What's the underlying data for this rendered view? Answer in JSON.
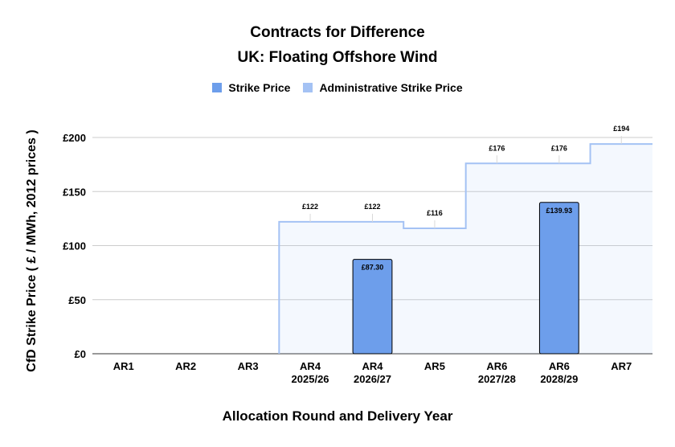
{
  "chart_data": {
    "type": "bar",
    "title": "Contracts for Difference",
    "subtitle": "UK: Floating Offshore Wind",
    "xlabel": "Allocation Round and Delivery Year",
    "ylabel": "CfD Strike Price ( £ / MWh, 2012 prices )",
    "ylim": [
      0,
      200
    ],
    "yticks": [
      0,
      50,
      100,
      150,
      200
    ],
    "ytick_labels": [
      "£0",
      "£50",
      "£100",
      "£150",
      "£200"
    ],
    "grid": true,
    "legend_position": "top",
    "categories": [
      [
        "AR1",
        ""
      ],
      [
        "AR2",
        ""
      ],
      [
        "AR3",
        ""
      ],
      [
        "AR4",
        "2025/26"
      ],
      [
        "AR4",
        "2026/27"
      ],
      [
        "AR5",
        ""
      ],
      [
        "AR6",
        "2027/28"
      ],
      [
        "AR6",
        "2028/29"
      ],
      [
        "AR7",
        ""
      ]
    ],
    "series": [
      {
        "name": "Strike Price",
        "kind": "bar",
        "color": "#6d9eeb",
        "values": [
          null,
          null,
          null,
          null,
          87.3,
          null,
          null,
          139.93,
          null
        ],
        "labels": [
          "",
          "",
          "",
          "",
          "£87.30",
          "",
          "",
          "£139.93",
          ""
        ]
      },
      {
        "name": "Administrative Strike Price",
        "kind": "stepped-area",
        "color": "#a4c2f4",
        "values": [
          null,
          null,
          null,
          122,
          122,
          116,
          176,
          176,
          194
        ],
        "labels": [
          "",
          "",
          "",
          "£122",
          "£122",
          "£116",
          "£176",
          "£176",
          "£194"
        ]
      }
    ]
  }
}
